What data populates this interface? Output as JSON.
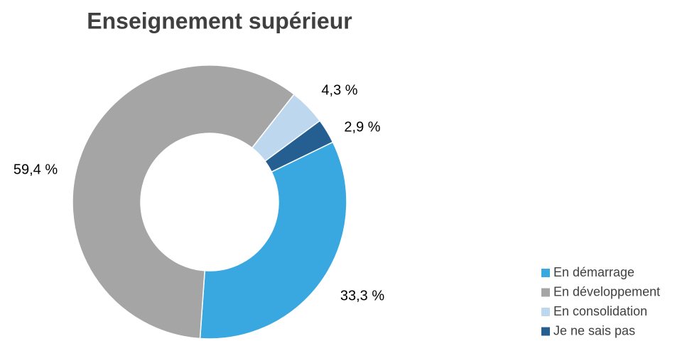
{
  "chart_data": {
    "type": "donut",
    "title": "Enseignement supérieur",
    "categories": [
      "En démarrage",
      "En développement",
      "En consolidation",
      "Je ne sais pas"
    ],
    "values": [
      33.3,
      59.4,
      4.3,
      2.9
    ],
    "value_labels": [
      "33,3 %",
      "59,4 %",
      "4,3 %",
      "2,9 %"
    ],
    "colors": [
      "#3aa8e0",
      "#a5a5a5",
      "#bdd7ee",
      "#255e91"
    ],
    "legend": "bottom-right"
  }
}
